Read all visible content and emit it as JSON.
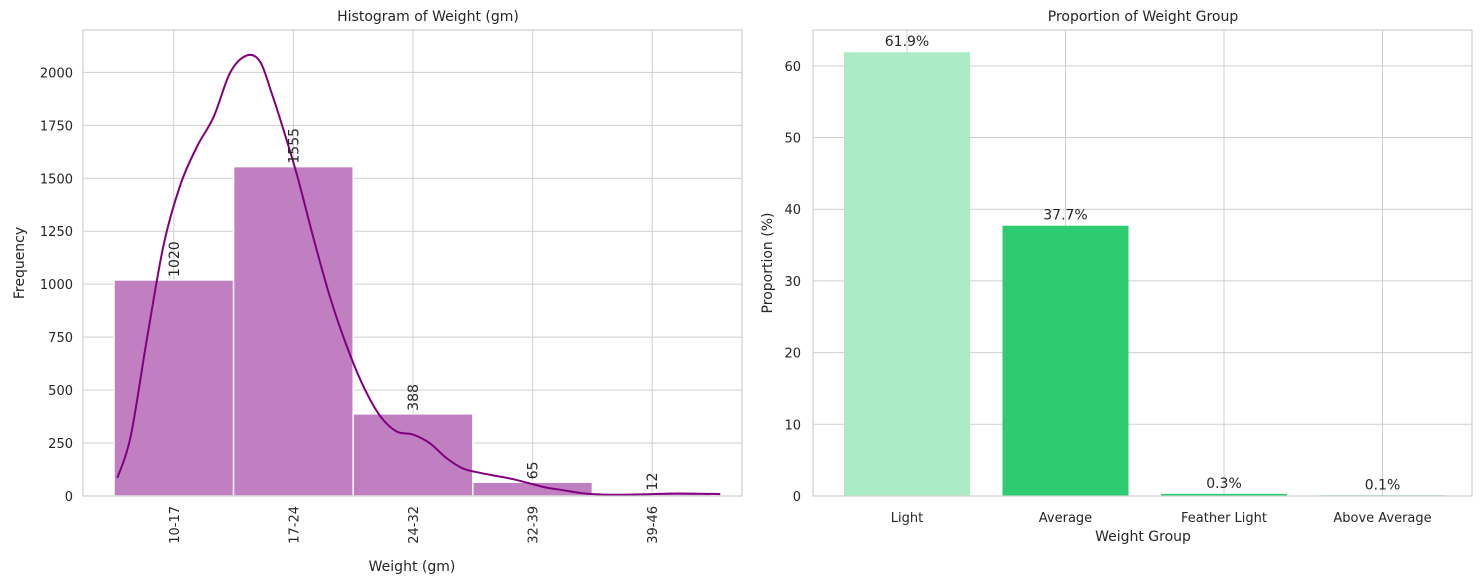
{
  "chart_data": [
    {
      "type": "bar",
      "title": "Histogram of Weight (gm)",
      "xlabel": "Weight (gm)",
      "ylabel": "Frequency",
      "categories": [
        "10-17",
        "17-24",
        "24-32",
        "32-39",
        "39-46"
      ],
      "values": [
        1020,
        1555,
        388,
        65,
        12
      ],
      "data_labels": [
        "1020",
        "1555",
        "388",
        "65",
        "12"
      ],
      "ylim": [
        0,
        2200
      ],
      "yticks": [
        0,
        250,
        500,
        750,
        1000,
        1250,
        1500,
        1750,
        2000
      ],
      "bar_color": "#bf7fc0",
      "kde_color": "#800080",
      "kde": {
        "x": [
          10.2,
          11,
          12,
          13,
          14,
          15,
          16,
          17,
          18,
          18.8,
          19.5,
          20,
          21,
          22,
          23,
          24,
          25,
          26,
          27,
          28,
          29,
          30,
          31,
          32,
          33,
          34,
          35,
          36,
          37,
          38,
          39,
          40,
          42,
          44,
          46.5
        ],
        "y": [
          85,
          280,
          750,
          1190,
          1470,
          1650,
          1790,
          2000,
          2080,
          2050,
          1900,
          1780,
          1520,
          1220,
          940,
          710,
          520,
          380,
          305,
          290,
          250,
          180,
          130,
          110,
          95,
          80,
          60,
          40,
          28,
          15,
          8,
          6,
          8,
          12,
          9
        ]
      },
      "grid": true
    },
    {
      "type": "bar",
      "title": "Proportion of Weight Group",
      "xlabel": "Weight Group",
      "ylabel": "Proportion (%)",
      "categories": [
        "Light",
        "Average",
        "Feather Light",
        "Above Average"
      ],
      "values": [
        61.9,
        37.7,
        0.3,
        0.1
      ],
      "data_labels": [
        "61.9%",
        "37.7%",
        "0.3%",
        "0.1%"
      ],
      "ylim": [
        0,
        65
      ],
      "yticks": [
        0,
        10,
        20,
        30,
        40,
        50,
        60
      ],
      "colors": [
        "#abebc6",
        "#2ecc71",
        "#2ecc71",
        "#2ecc71"
      ],
      "grid": true
    }
  ]
}
